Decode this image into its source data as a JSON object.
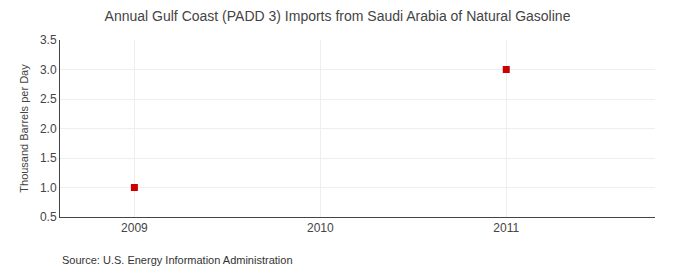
{
  "chart_data": {
    "type": "scatter",
    "title": "Annual Gulf Coast (PADD 3) Imports from Saudi Arabia of Natural Gasoline",
    "ylabel": "Thousand Barrels per Day",
    "annotations": [
      "Source: U.S. Energy Information Administration"
    ],
    "x": [
      2009,
      2011
    ],
    "values": [
      1.0,
      3.0
    ],
    "color": "#CC0000",
    "marker": "square",
    "xlim": [
      2008.6,
      2011.8
    ],
    "ylim": [
      0.5,
      3.5
    ],
    "xticks": [
      2009,
      2010,
      2011
    ],
    "yticks": [
      0.5,
      {
        "value": 1,
        "label": "1.0"
      },
      1.5,
      {
        "value": 2,
        "label": "2.0"
      },
      2.5,
      {
        "value": 3,
        "label": "3.0"
      },
      3.5
    ],
    "grid": true
  }
}
